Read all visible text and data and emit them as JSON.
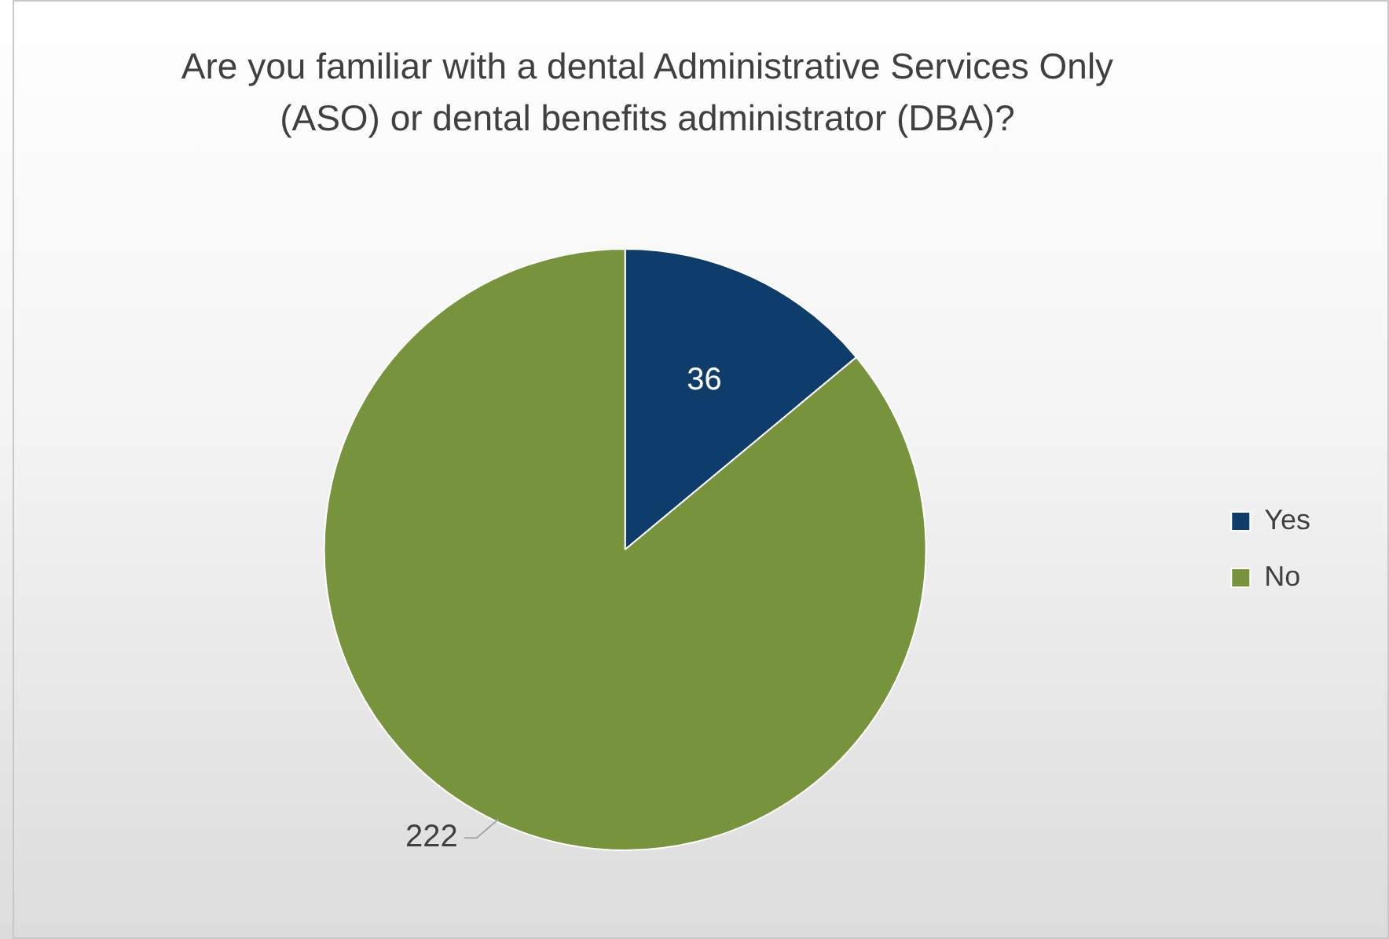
{
  "chart_data": {
    "type": "pie",
    "title": "Are you familiar with a dental Administrative Services Only (ASO) or dental benefits administrator (DBA)?",
    "categories": [
      "Yes",
      "No"
    ],
    "values": [
      36,
      222
    ],
    "colors": [
      "#0f3d6b",
      "#77933c"
    ],
    "data_labels": true,
    "legend": "right"
  }
}
